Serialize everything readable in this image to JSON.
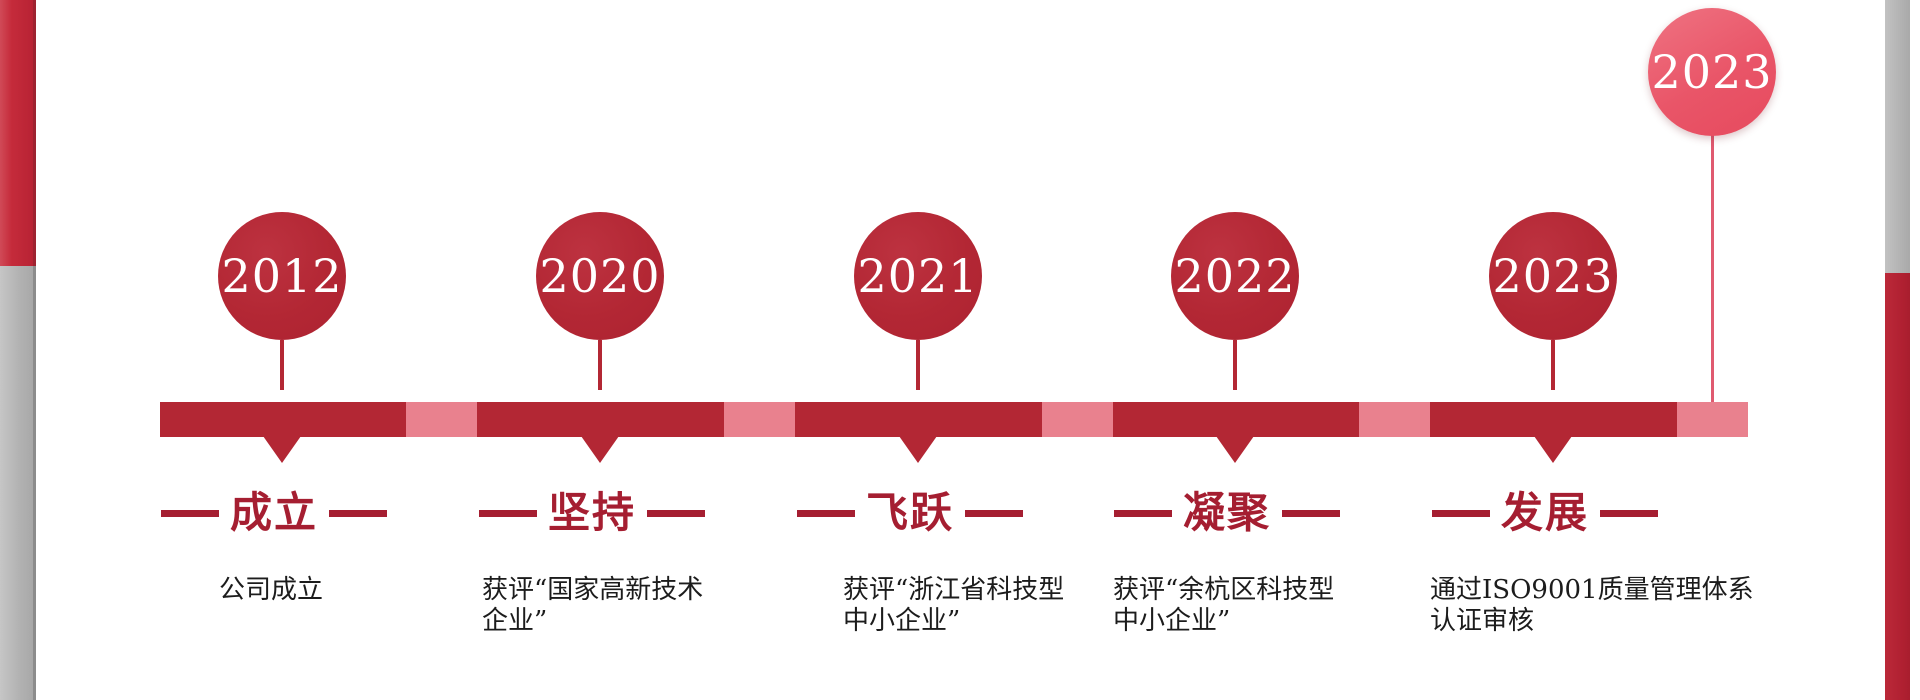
{
  "page": {
    "type": "company-history-timeline",
    "colors": {
      "timeline_dark_red": "#b32734",
      "timeline_pink": "#e9818e",
      "label_red": "#a51e31",
      "floating_marker_pink": "#e85568",
      "left_bar_red": "#c52b3b",
      "right_bar_red": "#b02031",
      "side_bar_gray": "#b3b3b3",
      "year_text": "#ffffff",
      "description_text": "#1c1c1c",
      "background": "#ffffff"
    }
  },
  "timeline": {
    "floating_marker": {
      "year": "2023"
    },
    "milestones": [
      {
        "year": "2012",
        "title": "成立",
        "desc_lines": [
          "公司成立"
        ]
      },
      {
        "year": "2020",
        "title": "坚持",
        "desc_lines": [
          "获评“国家高新技术",
          "企业”"
        ]
      },
      {
        "year": "2021",
        "title": "飞跃",
        "desc_lines": [
          "获评“浙江省科技型",
          "中小企业”"
        ]
      },
      {
        "year": "2022",
        "title": "凝聚",
        "desc_lines": [
          "获评“余杭区科技型",
          "中小企业”"
        ]
      },
      {
        "year": "2023",
        "title": "发展",
        "desc_lines": [
          "通过ISO9001质量管理体系",
          "认证审核"
        ]
      }
    ]
  }
}
